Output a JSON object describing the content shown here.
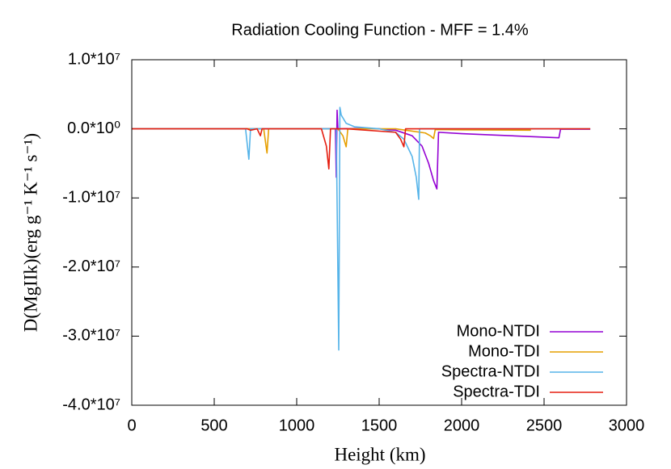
{
  "chart_data": {
    "type": "line",
    "title": "Radiation Cooling Function - MFF = 1.4%",
    "x_label": "Height (km)",
    "y_label": "D(MgIIk)(erg g⁻¹ K⁻¹ s⁻¹)",
    "xlim": [
      0,
      3000
    ],
    "ylim": [
      -40000000,
      10000000
    ],
    "xticks": [
      0,
      500,
      1000,
      1500,
      2000,
      2500,
      3000
    ],
    "yticks": [
      {
        "value": 10000000,
        "label": "1.0*10⁷"
      },
      {
        "value": 0,
        "label": "0.0*10⁰"
      },
      {
        "value": -10000000,
        "label": "-1.0*10⁷"
      },
      {
        "value": -20000000,
        "label": "-2.0*10⁷"
      },
      {
        "value": -30000000,
        "label": "-3.0*10⁷"
      },
      {
        "value": -40000000,
        "label": "-4.0*10⁷"
      }
    ],
    "legend": "lower right",
    "series": [
      {
        "name": "Mono-NTDI",
        "color": "#9400d3",
        "x": [
          0,
          1000,
          1200,
          1235,
          1240,
          1245,
          1250,
          1260,
          1400,
          1500,
          1600,
          1700,
          1760,
          1800,
          1830,
          1850,
          1860,
          2000,
          2200,
          2400,
          2590,
          2600,
          2780
        ],
        "values": [
          0,
          0,
          20000,
          0,
          -7000000,
          2700000,
          0,
          0,
          80000,
          0,
          -200000,
          -1000000,
          -2500000,
          -5000000,
          -7500000,
          -8700000,
          -500000,
          -700000,
          -900000,
          -1100000,
          -1300000,
          -50000,
          -50000
        ]
      },
      {
        "name": "Mono-TDI",
        "color": "#e69f00",
        "x": [
          0,
          800,
          820,
          830,
          1000,
          1250,
          1280,
          1300,
          1310,
          1400,
          1600,
          1780,
          1810,
          1830,
          1840,
          2000,
          2420
        ],
        "values": [
          0,
          0,
          -3500000,
          0,
          0,
          0,
          -1000000,
          -2600000,
          0,
          0,
          0,
          -600000,
          -1000000,
          -1400000,
          -100000,
          -150000,
          -200000
        ]
      },
      {
        "name": "Spectra-NTDI",
        "color": "#56b4e9",
        "x": [
          0,
          690,
          710,
          720,
          1000,
          1240,
          1255,
          1262,
          1270,
          1300,
          1350,
          1500,
          1600,
          1650,
          1700,
          1725,
          1740,
          1745,
          2000,
          2780
        ],
        "values": [
          0,
          0,
          -4400000,
          0,
          0,
          0,
          -32000000,
          3100000,
          2000000,
          800000,
          300000,
          0,
          -500000,
          -1500000,
          -4000000,
          -7000000,
          -10200000,
          0,
          0,
          0
        ]
      },
      {
        "name": "Spectra-TDI",
        "color": "#e51e10",
        "x": [
          0,
          700,
          720,
          760,
          780,
          790,
          1150,
          1180,
          1195,
          1205,
          1300,
          1600,
          1630,
          1650,
          1660,
          2780
        ],
        "values": [
          0,
          0,
          -200000,
          0,
          -1000000,
          0,
          0,
          -2500000,
          -5800000,
          0,
          0,
          -500000,
          -1500000,
          -2600000,
          0,
          0
        ]
      }
    ]
  }
}
